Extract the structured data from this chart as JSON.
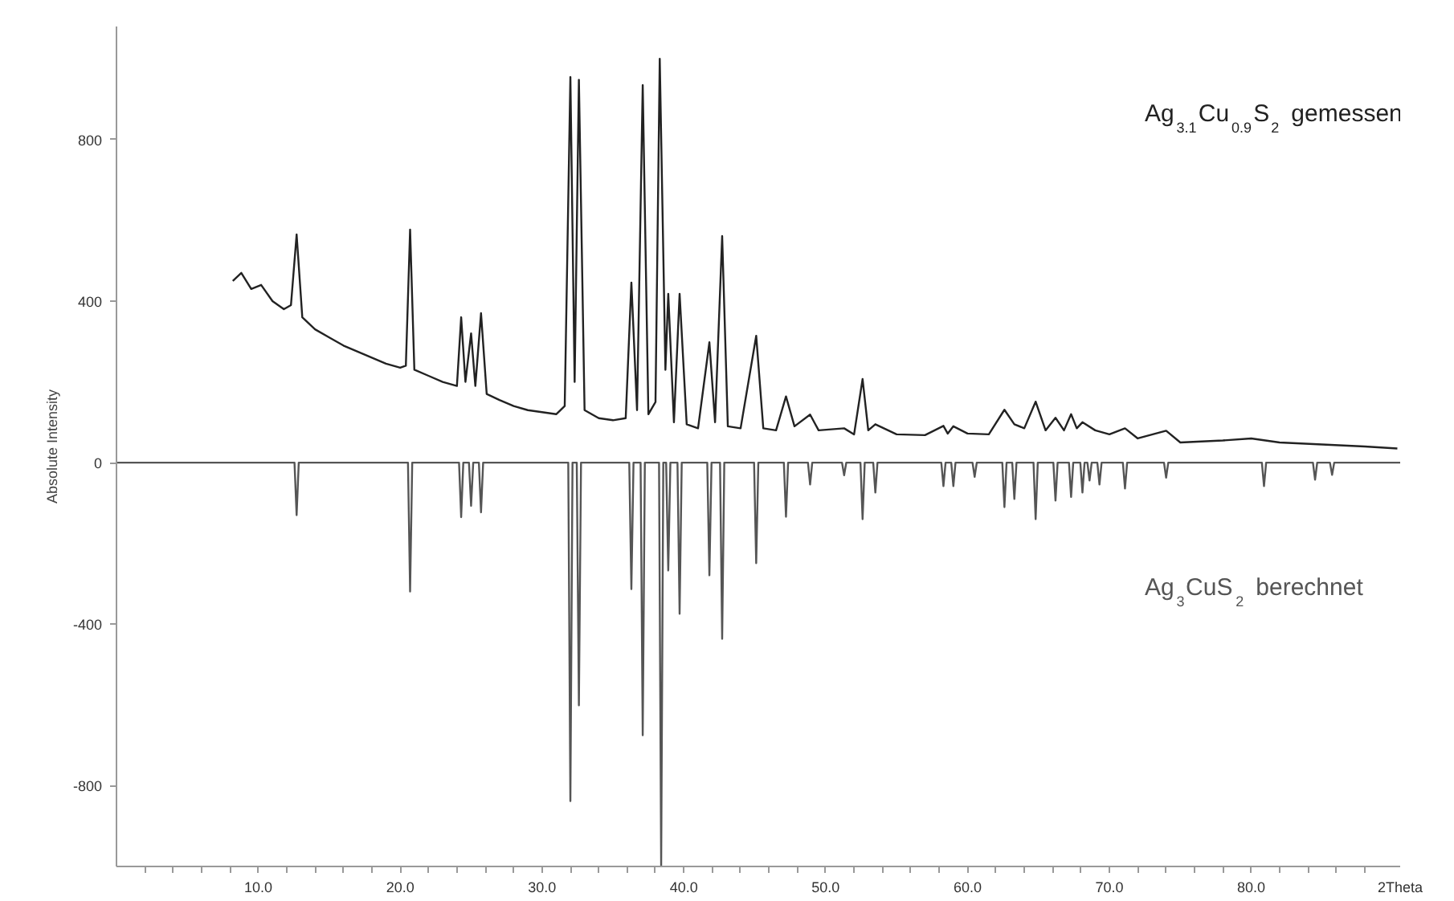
{
  "chart_data": {
    "type": "line",
    "ylabel": "Absolute Intensity",
    "xlabel": "2Theta",
    "xlim": [
      0,
      90.5
    ],
    "ylim": [
      -1000,
      1080
    ],
    "xticks": [
      {
        "value": 2,
        "label": null
      },
      {
        "value": 4,
        "label": null
      },
      {
        "value": 6,
        "label": null
      },
      {
        "value": 8,
        "label": null
      },
      {
        "value": 10,
        "label": "10.0"
      },
      {
        "value": 12,
        "label": null
      },
      {
        "value": 14,
        "label": null
      },
      {
        "value": 16,
        "label": null
      },
      {
        "value": 18,
        "label": null
      },
      {
        "value": 20,
        "label": "20.0"
      },
      {
        "value": 22,
        "label": null
      },
      {
        "value": 24,
        "label": null
      },
      {
        "value": 26,
        "label": null
      },
      {
        "value": 28,
        "label": null
      },
      {
        "value": 30,
        "label": "30.0"
      },
      {
        "value": 32,
        "label": null
      },
      {
        "value": 34,
        "label": null
      },
      {
        "value": 36,
        "label": null
      },
      {
        "value": 38,
        "label": null
      },
      {
        "value": 40,
        "label": "40.0"
      },
      {
        "value": 42,
        "label": null
      },
      {
        "value": 44,
        "label": null
      },
      {
        "value": 46,
        "label": null
      },
      {
        "value": 48,
        "label": null
      },
      {
        "value": 50,
        "label": "50.0"
      },
      {
        "value": 52,
        "label": null
      },
      {
        "value": 54,
        "label": null
      },
      {
        "value": 56,
        "label": null
      },
      {
        "value": 58,
        "label": null
      },
      {
        "value": 60,
        "label": "60.0"
      },
      {
        "value": 62,
        "label": null
      },
      {
        "value": 64,
        "label": null
      },
      {
        "value": 66,
        "label": null
      },
      {
        "value": 68,
        "label": null
      },
      {
        "value": 70,
        "label": "70.0"
      },
      {
        "value": 72,
        "label": null
      },
      {
        "value": 74,
        "label": null
      },
      {
        "value": 76,
        "label": null
      },
      {
        "value": 78,
        "label": null
      },
      {
        "value": 80,
        "label": "80.0"
      },
      {
        "value": 82,
        "label": null
      },
      {
        "value": 84,
        "label": null
      },
      {
        "value": 86,
        "label": null
      },
      {
        "value": 88,
        "label": null
      }
    ],
    "yticks": [
      -800,
      -400,
      0,
      400,
      800
    ],
    "grid": false,
    "series": [
      {
        "name": "Ag$_{3.1}$Cu$_{0.9}$S$_{2}$ gemessen",
        "color": "#222222",
        "x": [
          8.2,
          8.8,
          9.5,
          10.2,
          11,
          11.8,
          12.3,
          12.7,
          13.1,
          14,
          15,
          16,
          17,
          18,
          19,
          20,
          20.4,
          20.7,
          21.0,
          22,
          23,
          24,
          24.3,
          24.6,
          25.0,
          25.3,
          25.7,
          26.1,
          27,
          28,
          29,
          30,
          31,
          31.6,
          32.0,
          32.3,
          32.6,
          33.0,
          34,
          35,
          35.9,
          36.3,
          36.7,
          37.1,
          37.5,
          38.0,
          38.3,
          38.7,
          38.9,
          39.3,
          39.7,
          40.2,
          41,
          41.8,
          42.2,
          42.7,
          43.1,
          44,
          45.1,
          45.6,
          46.5,
          47.2,
          47.8,
          48.9,
          49.5,
          51.3,
          52,
          52.6,
          53.0,
          53.5,
          55,
          57,
          58.3,
          58.6,
          59.0,
          60,
          61.5,
          62.6,
          63.3,
          64.0,
          64.8,
          65.5,
          66.2,
          66.8,
          67.3,
          67.7,
          68.1,
          69,
          70,
          71.1,
          72,
          74.0,
          75,
          78,
          80,
          82,
          85,
          88,
          90.3
        ],
        "values": [
          450,
          470,
          430,
          440,
          400,
          380,
          390,
          565,
          360,
          330,
          310,
          290,
          275,
          260,
          245,
          235,
          240,
          577,
          230,
          215,
          200,
          190,
          360,
          200,
          320,
          190,
          370,
          170,
          155,
          140,
          130,
          125,
          120,
          140,
          955,
          200,
          948,
          130,
          110,
          105,
          110,
          446,
          130,
          935,
          120,
          150,
          1000,
          230,
          418,
          100,
          418,
          95,
          85,
          298,
          100,
          561,
          90,
          85,
          314,
          85,
          80,
          164,
          90,
          119,
          80,
          85,
          70,
          207,
          80,
          95,
          70,
          68,
          91,
          72,
          90,
          72,
          70,
          131,
          95,
          85,
          151,
          80,
          111,
          80,
          120,
          85,
          100,
          80,
          70,
          85,
          60,
          79,
          50,
          55,
          60,
          50,
          45,
          40,
          35
        ]
      },
      {
        "name": "Ag$_{3}$CuS$_{2}$ berechnet",
        "color": "#555555",
        "x": [
          0,
          12.55,
          12.7,
          12.85,
          20.55,
          20.7,
          20.85,
          24.15,
          24.3,
          24.45,
          24.85,
          25.0,
          25.15,
          25.55,
          25.7,
          25.85,
          31.85,
          32.0,
          32.15,
          32.45,
          32.6,
          32.75,
          36.15,
          36.3,
          36.45,
          36.95,
          37.1,
          37.25,
          38.25,
          38.4,
          38.55,
          38.75,
          38.9,
          39.05,
          39.55,
          39.7,
          39.85,
          41.65,
          41.8,
          41.95,
          42.55,
          42.7,
          42.85,
          44.95,
          45.1,
          45.25,
          47.05,
          47.2,
          47.35,
          48.75,
          48.9,
          49.05,
          51.15,
          51.3,
          51.45,
          52.45,
          52.6,
          52.75,
          53.35,
          53.5,
          53.65,
          58.15,
          58.3,
          58.45,
          58.85,
          59.0,
          59.15,
          60.35,
          60.5,
          60.65,
          62.45,
          62.6,
          62.75,
          63.15,
          63.3,
          63.45,
          64.65,
          64.8,
          64.95,
          66.05,
          66.2,
          66.35,
          67.15,
          67.3,
          67.45,
          67.95,
          68.1,
          68.25,
          68.45,
          68.6,
          68.75,
          69.15,
          69.3,
          69.45,
          70.95,
          71.1,
          71.25,
          73.85,
          74.0,
          74.15,
          80.75,
          80.9,
          81.05,
          84.35,
          84.5,
          84.65,
          85.55,
          85.7,
          85.85,
          90.5
        ],
        "values": [
          0,
          0,
          -130,
          0,
          0,
          -319,
          0,
          0,
          -135,
          0,
          0,
          -107,
          0,
          0,
          -123,
          0,
          0,
          -838,
          0,
          0,
          -601,
          0,
          0,
          -313,
          0,
          0,
          -675,
          0,
          0,
          -1000,
          0,
          0,
          -267,
          0,
          0,
          -374,
          0,
          0,
          -279,
          0,
          0,
          -436,
          0,
          0,
          -249,
          0,
          0,
          -134,
          0,
          0,
          -54,
          0,
          0,
          -31,
          0,
          0,
          -140,
          0,
          0,
          -74,
          0,
          0,
          -58,
          0,
          0,
          -58,
          0,
          0,
          -35,
          0,
          0,
          -110,
          0,
          0,
          -90,
          0,
          0,
          -140,
          0,
          0,
          -94,
          0,
          0,
          -85,
          0,
          0,
          -74,
          0,
          0,
          -44,
          0,
          0,
          -54,
          0,
          0,
          -64,
          0,
          0,
          -37,
          0,
          0,
          -58,
          0,
          0,
          -42,
          0,
          0,
          -30,
          0,
          0
        ]
      }
    ]
  }
}
